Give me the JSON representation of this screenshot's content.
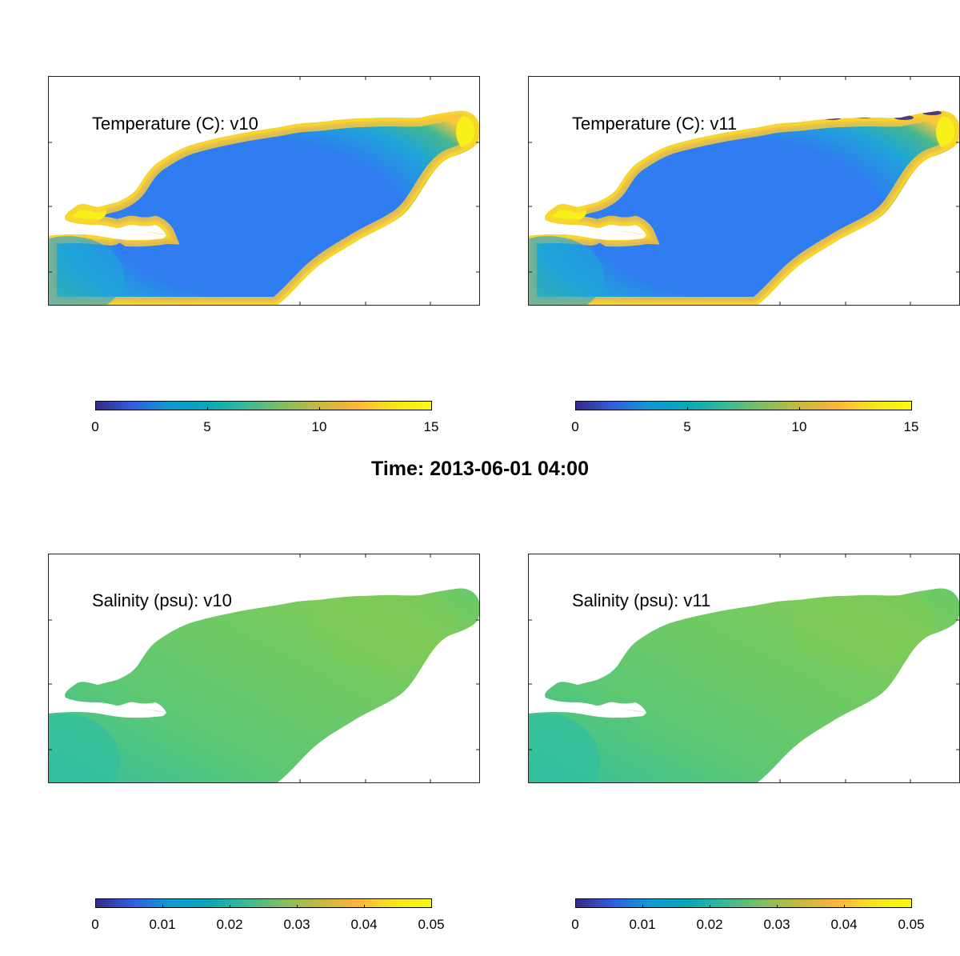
{
  "figure": {
    "suptitle": "Time: 2013-06-01 04:00"
  },
  "panels": [
    {
      "id": "temp-v10",
      "title": "Temperature (C): v10",
      "variable": "temperature",
      "colormap": "parula",
      "clim": [
        0,
        15
      ]
    },
    {
      "id": "temp-v11",
      "title": "Temperature (C): v11",
      "variable": "temperature",
      "colormap": "parula",
      "clim": [
        0,
        15
      ]
    },
    {
      "id": "sal-v10",
      "title": "Salinity (psu): v10",
      "variable": "salinity",
      "colormap": "parula",
      "clim": [
        0,
        0.05
      ]
    },
    {
      "id": "sal-v11",
      "title": "Salinity (psu): v11",
      "variable": "salinity",
      "colormap": "parula",
      "clim": [
        0,
        0.05
      ]
    }
  ],
  "colorbars": [
    {
      "id": "cb-temp-v10",
      "ticks": [
        "0",
        "5",
        "10",
        "15"
      ]
    },
    {
      "id": "cb-temp-v11",
      "ticks": [
        "0",
        "5",
        "10",
        "15"
      ]
    },
    {
      "id": "cb-sal-v10",
      "ticks": [
        "0",
        "0.01",
        "0.02",
        "0.03",
        "0.04",
        "0.05"
      ]
    },
    {
      "id": "cb-sal-v11",
      "ticks": [
        "0",
        "0.01",
        "0.02",
        "0.03",
        "0.04",
        "0.05"
      ]
    }
  ],
  "colors": {
    "parula": [
      "#352a87",
      "#2f60e0",
      "#0f9ad4",
      "#06a8b8",
      "#38b99a",
      "#7fbf62",
      "#c6b93e",
      "#fdb53b",
      "#f7e51d",
      "#f9fb0e"
    ],
    "temp_deep": "#2f7df0",
    "temp_mid": "#1fa5d8",
    "temp_shallow": "#46b78f",
    "temp_warm": "#f9c73a",
    "temp_hot": "#f7f01a",
    "sal_base": "#5ec872",
    "sal_west": "#32bfa0",
    "sal_east": "#7ecb58"
  }
}
